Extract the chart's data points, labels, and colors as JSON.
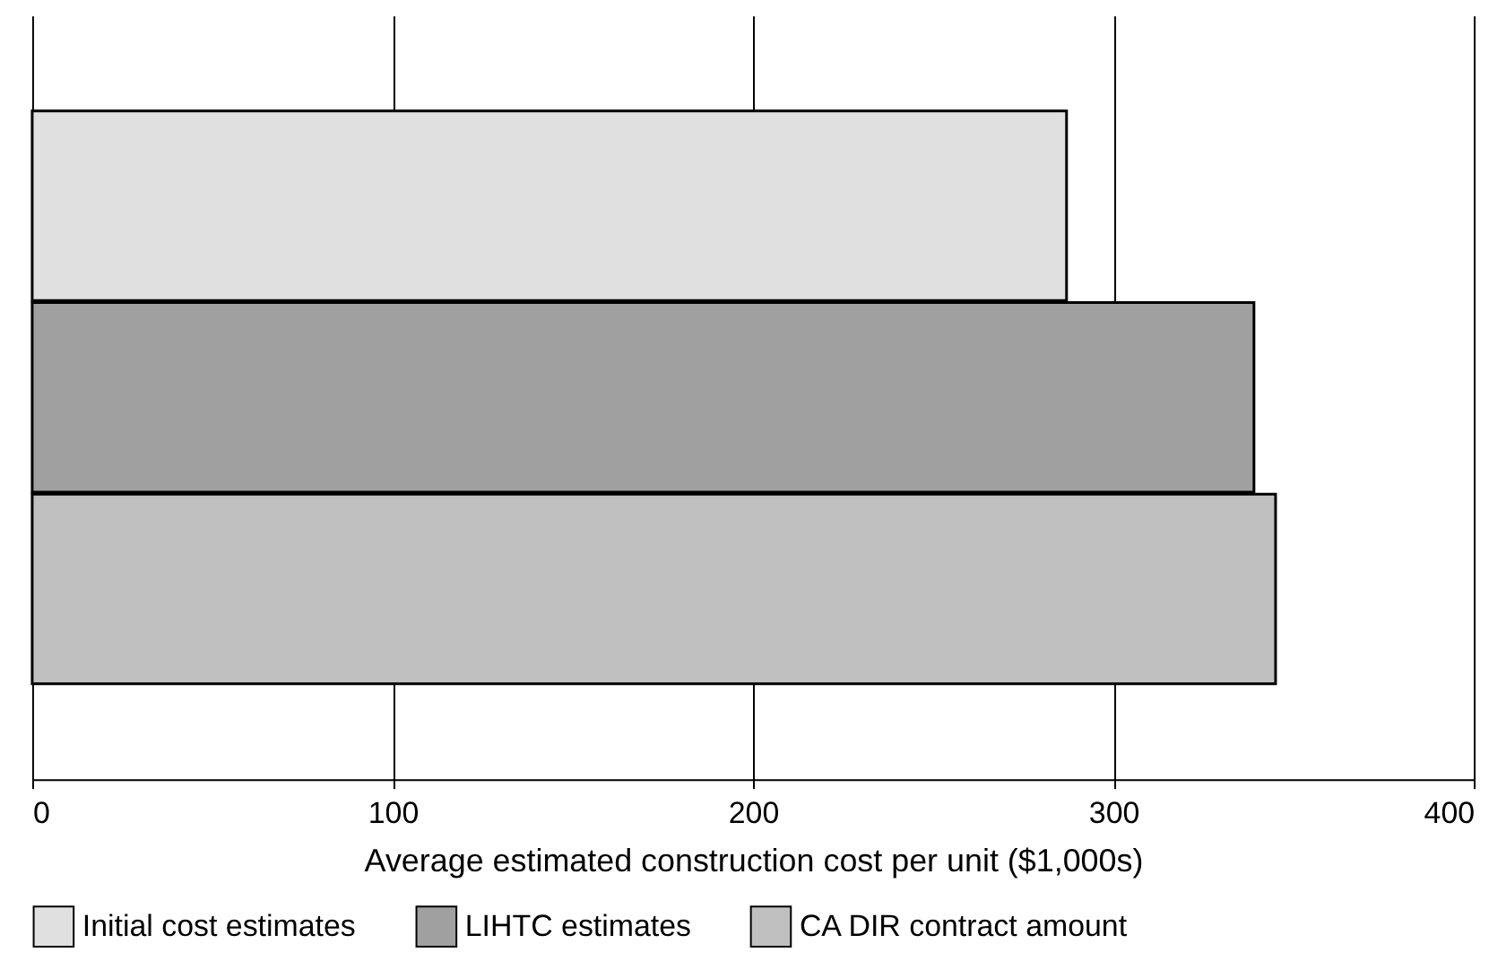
{
  "chart_data": {
    "type": "bar",
    "orientation": "horizontal",
    "categories": [
      null
    ],
    "xlabel": "Average estimated construction cost per unit ($1,000s)",
    "series": [
      {
        "name": "Initial cost estimates",
        "color": "#e0e0e0",
        "values": [
          287
        ]
      },
      {
        "name": "LIHTC estimates",
        "color": "#a0a0a0",
        "values": [
          339
        ]
      },
      {
        "name": "CA DIR contract amount",
        "color": "#c0c0c0",
        "values": [
          345
        ]
      }
    ],
    "xlim": [
      0,
      400
    ],
    "xticks": [
      0,
      100,
      200,
      300,
      400
    ],
    "grid": "x",
    "legend": "bottom",
    "tick_labels": "x"
  }
}
